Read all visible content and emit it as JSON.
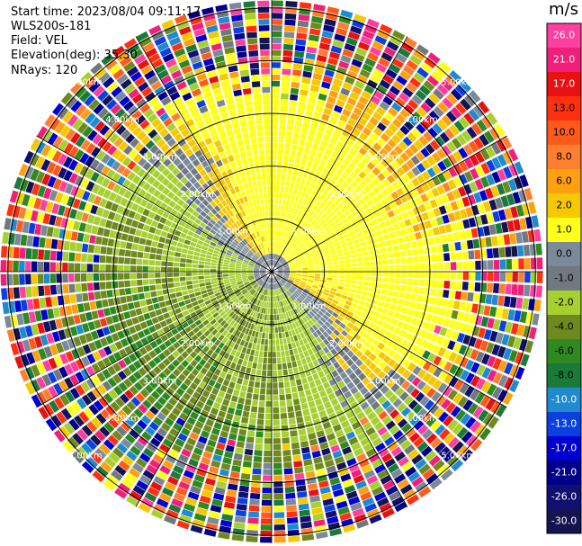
{
  "header": {
    "start_time": "Start time: 2023/08/04 09:11:17",
    "instrument": "WLS200s-181",
    "field": "Field: VEL",
    "elevation": "Elevation(deg): 35.30",
    "nrays": "NRays: 120"
  },
  "chart_data": {
    "type": "ppi",
    "field": "VEL",
    "units": "m/s",
    "nrays": 120,
    "elevation_deg": 35.3,
    "range_rings_km": [
      1.0,
      2.0,
      3.0,
      4.0,
      5.0
    ],
    "ring_labels": [
      "1.00km",
      "2.00km",
      "3.00km",
      "4.00km",
      "5.00km"
    ],
    "colorbar": {
      "label": "m/s",
      "ticks": [
        "26.0",
        "21.0",
        "17.0",
        "13.0",
        "10.0",
        "8.0",
        "6.0",
        "2.0",
        "1.0",
        "0.0",
        "-1.0",
        "-2.0",
        "-4.0",
        "-6.0",
        "-8.0",
        "-10.0",
        "-13.0",
        "-17.0",
        "-21.0",
        "-26.0",
        "-30.0"
      ],
      "colors": [
        "#ff3fa0",
        "#f0207a",
        "#e81010",
        "#ff3010",
        "#ff5a1a",
        "#ff7f30",
        "#ffa010",
        "#f5c800",
        "#ffff1a",
        "#7a8a9a",
        "#707880",
        "#a6d030",
        "#6e8a1e",
        "#2e8a20",
        "#1a7a3a",
        "#1f8ad0",
        "#0a40e0",
        "#0000d0",
        "#00008a",
        "#101070",
        "#141450"
      ]
    },
    "description_regions": {
      "inner_yellow_positive": "north-east sector, velocities ~2 to 6 m/s",
      "green_negative": "south-west sector, velocities ~-2 to -6 m/s",
      "noise_outer": "beyond ~3.5 km, random mixed colors"
    }
  }
}
